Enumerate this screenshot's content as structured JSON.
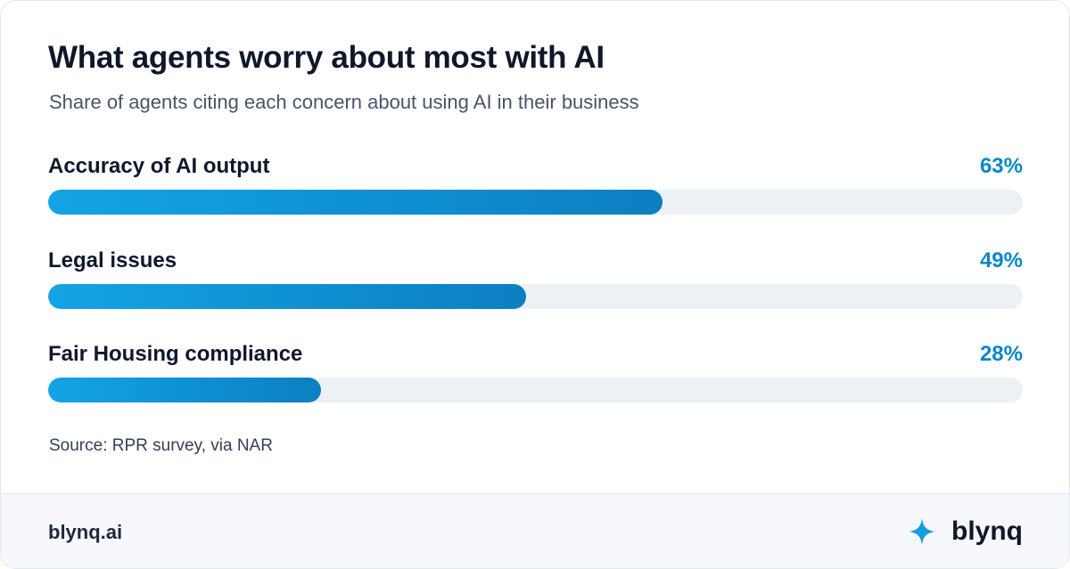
{
  "title": "What agents worry about most with AI",
  "subtitle": "Share of agents citing each concern about using AI in their business",
  "source": "Source: RPR survey, via NAR",
  "footer": {
    "url": "blynq.ai",
    "brand": "blynq"
  },
  "colors": {
    "accent": "#0b86c8",
    "bar_start": "#13a4e6",
    "bar_end": "#0b7fc1",
    "track": "#edf1f6"
  },
  "icons": {
    "brand": "sparkle-icon"
  },
  "chart_data": {
    "type": "bar",
    "orientation": "horizontal",
    "categories": [
      "Accuracy of AI output",
      "Legal issues",
      "Fair Housing compliance"
    ],
    "values": [
      63,
      49,
      28
    ],
    "value_labels": [
      "63%",
      "49%",
      "28%"
    ],
    "unit": "%",
    "xlim": [
      0,
      100
    ],
    "title": "What agents worry about most with AI",
    "subtitle": "Share of agents citing each concern about using AI in their business",
    "grid": false,
    "legend": "none"
  }
}
